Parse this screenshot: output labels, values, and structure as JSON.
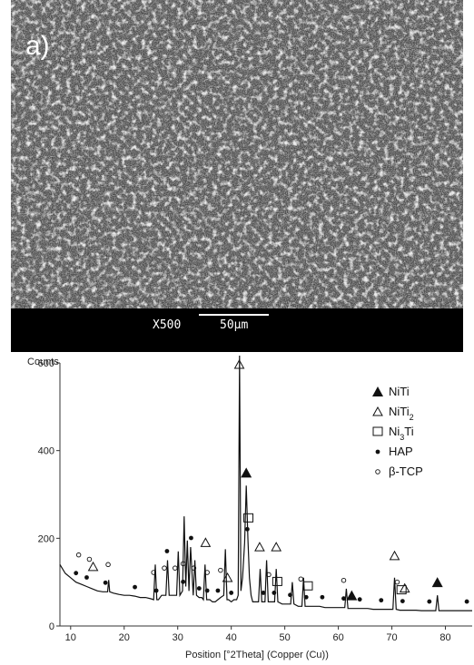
{
  "panel_label": "a)",
  "sem": {
    "magnification_label": "X500",
    "scale_bar_label": "50µm"
  },
  "chart_data": {
    "type": "line",
    "title": "",
    "xlabel": "Position [°2Theta] (Copper (Cu))",
    "ylabel": "Counts",
    "xlim": [
      8,
      85
    ],
    "ylim": [
      0,
      600
    ],
    "x_ticks": [
      10,
      20,
      30,
      40,
      50,
      60,
      70,
      80
    ],
    "y_ticks": [
      0,
      200,
      400,
      600
    ],
    "legend_position": "top-right",
    "series": [
      {
        "x": [
          8,
          9,
          10,
          11,
          12,
          13,
          14,
          15,
          16,
          16.9,
          17.1,
          17.3,
          18,
          19,
          20,
          21,
          22,
          23,
          24,
          25,
          25.5,
          25.8,
          26.1,
          26.4,
          27,
          27.8,
          28.1,
          28.4,
          29,
          29.5,
          29.8,
          30.1,
          30.4,
          30.9,
          31.2,
          31.5,
          31.8,
          32.1,
          32.4,
          32.9,
          33.2,
          33.5,
          34,
          34.5,
          34.8,
          35.1,
          35.4,
          36,
          36.5,
          37,
          37.5,
          38,
          38.6,
          38.9,
          39.2,
          39.5,
          40,
          40.5,
          41,
          41.3,
          41.55,
          41.8,
          42.1,
          42.5,
          42.8,
          43.1,
          43.4,
          43.7,
          44,
          44.5,
          45.1,
          45.4,
          45.7,
          46.3,
          46.6,
          46.9,
          47.5,
          48.1,
          48.4,
          48.7,
          49.5,
          50.5,
          51.1,
          51.4,
          51.7,
          52.5,
          53.2,
          53.5,
          53.8,
          54.5,
          55.5,
          56.5,
          57.5,
          58.5,
          59.5,
          60.5,
          61.2,
          61.5,
          61.8,
          62.5,
          63.5,
          64.5,
          65.5,
          66.5,
          67.5,
          68.5,
          69.5,
          70.2,
          70.5,
          70.8,
          71.5,
          72.5,
          73.5,
          74.5,
          75.5,
          76.5,
          77.5,
          78.2,
          78.5,
          78.8,
          79.5,
          80.5,
          81.5,
          82.5,
          83.5,
          85
        ],
        "y": [
          140,
          120,
          110,
          100,
          95,
          90,
          85,
          80,
          78,
          78,
          105,
          78,
          75,
          72,
          70,
          70,
          68,
          65,
          65,
          62,
          60,
          140,
          60,
          60,
          70,
          70,
          150,
          70,
          70,
          70,
          70,
          170,
          70,
          80,
          250,
          90,
          195,
          80,
          180,
          70,
          150,
          70,
          65,
          65,
          60,
          140,
          60,
          60,
          55,
          55,
          60,
          65,
          70,
          175,
          60,
          60,
          55,
          60,
          60,
          70,
          640,
          80,
          110,
          190,
          320,
          200,
          110,
          70,
          55,
          55,
          55,
          130,
          55,
          55,
          150,
          55,
          55,
          55,
          130,
          55,
          50,
          50,
          50,
          100,
          50,
          45,
          45,
          110,
          45,
          45,
          45,
          45,
          42,
          42,
          42,
          42,
          42,
          85,
          40,
          40,
          40,
          40,
          40,
          38,
          38,
          38,
          38,
          38,
          110,
          38,
          36,
          36,
          36,
          36,
          35,
          35,
          35,
          35,
          70,
          35,
          35,
          35,
          35,
          35,
          35,
          35
        ]
      }
    ],
    "phases": [
      {
        "name": "NiTi",
        "marker": "filled-triangle",
        "peaks": [
          42.8,
          62.5,
          78.5
        ]
      },
      {
        "name": "NiTi2",
        "marker": "open-triangle",
        "peaks": [
          14.2,
          35.2,
          39.3,
          41.5,
          45.3,
          48.4,
          70.5,
          72.4
        ]
      },
      {
        "name": "Ni3Ti",
        "marker": "open-square",
        "peaks": [
          43.2,
          48.6,
          54.3,
          71.8
        ]
      },
      {
        "name": "HAP",
        "marker": "dot",
        "peaks": [
          11,
          13,
          16.5,
          22,
          26,
          28,
          31,
          32.5,
          34,
          35.5,
          37.5,
          40,
          43,
          46,
          48,
          51,
          54,
          57,
          61,
          64,
          68,
          72,
          77,
          84
        ]
      },
      {
        "name": "β-TCP",
        "marker": "small-open-circle",
        "peaks": [
          11.5,
          13.5,
          17,
          25.5,
          27.5,
          29.5,
          31,
          33,
          35.5,
          38,
          47,
          53,
          61,
          71
        ]
      }
    ],
    "legend": [
      {
        "label": "NiTi",
        "marker": "filled-triangle"
      },
      {
        "label": "NiTi",
        "sub": "2",
        "marker": "open-triangle"
      },
      {
        "label": "Ni",
        "sub": "3",
        "label_after": "Ti",
        "marker": "open-square"
      },
      {
        "label": "HAP",
        "marker": "dot"
      },
      {
        "label": "β-TCP",
        "marker": "small-open-circle"
      }
    ]
  }
}
